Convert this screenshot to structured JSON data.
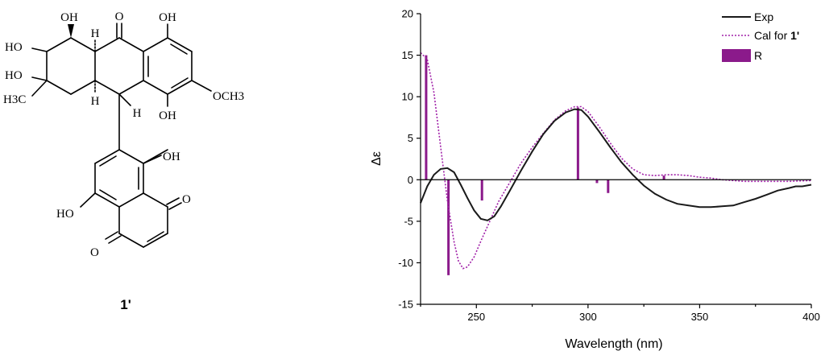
{
  "molecule": {
    "compound_label": "1'",
    "groups": {
      "oh_top_left": "OH",
      "carbonyl_o": "O",
      "oh_top_right": "OH",
      "ho_1": "HO",
      "ho_2": "HO",
      "h_ring_top": "H",
      "h_ring_bottom": "H",
      "h_benzylic": "H",
      "methyl": "H3C",
      "methoxy": "OCH3",
      "oh_mid": "OH",
      "oh_naph": "OH",
      "ho_naph": "HO",
      "o_quinone_right": "O",
      "o_quinone_left": "O"
    }
  },
  "chart_data": {
    "type": "line",
    "xlabel": "Wavelength (nm)",
    "ylabel": "Δε",
    "xlim": [
      225,
      400
    ],
    "ylim": [
      -15,
      20
    ],
    "x_ticks": [
      250,
      300,
      350,
      400
    ],
    "y_ticks": [
      -15,
      -10,
      -5,
      0,
      5,
      10,
      15,
      20
    ],
    "grid": false,
    "legend_position": "top-right",
    "series": [
      {
        "name": "Exp",
        "style": "solid",
        "color": "#1a1a1a",
        "points": [
          [
            225,
            -2.8
          ],
          [
            228,
            -0.8
          ],
          [
            231,
            0.6
          ],
          [
            234,
            1.3
          ],
          [
            237,
            1.4
          ],
          [
            240,
            0.9
          ],
          [
            243,
            -0.6
          ],
          [
            246,
            -2.2
          ],
          [
            249,
            -3.7
          ],
          [
            252,
            -4.7
          ],
          [
            255,
            -4.9
          ],
          [
            258,
            -4.4
          ],
          [
            261,
            -3.2
          ],
          [
            265,
            -1.3
          ],
          [
            270,
            1.1
          ],
          [
            275,
            3.4
          ],
          [
            280,
            5.5
          ],
          [
            285,
            7.1
          ],
          [
            290,
            8.1
          ],
          [
            294,
            8.5
          ],
          [
            297,
            8.4
          ],
          [
            300,
            7.6
          ],
          [
            305,
            5.8
          ],
          [
            310,
            3.9
          ],
          [
            315,
            2.1
          ],
          [
            320,
            0.6
          ],
          [
            325,
            -0.7
          ],
          [
            330,
            -1.7
          ],
          [
            335,
            -2.4
          ],
          [
            340,
            -2.9
          ],
          [
            345,
            -3.1
          ],
          [
            350,
            -3.3
          ],
          [
            355,
            -3.3
          ],
          [
            360,
            -3.2
          ],
          [
            365,
            -3.1
          ],
          [
            370,
            -2.7
          ],
          [
            375,
            -2.3
          ],
          [
            380,
            -1.8
          ],
          [
            385,
            -1.3
          ],
          [
            390,
            -1.0
          ],
          [
            393,
            -0.8
          ],
          [
            396,
            -0.8
          ],
          [
            400,
            -0.6
          ]
        ]
      },
      {
        "name": "Cal for 1'",
        "name_prefix": "Cal for ",
        "name_bold": "1'",
        "style": "dotted",
        "color": "#a020a8",
        "points": [
          [
            225,
            15.3
          ],
          [
            228,
            14.5
          ],
          [
            231,
            10.5
          ],
          [
            234,
            4.0
          ],
          [
            237,
            -2.5
          ],
          [
            240,
            -7.5
          ],
          [
            242,
            -9.8
          ],
          [
            244,
            -10.7
          ],
          [
            246,
            -10.5
          ],
          [
            249,
            -9.3
          ],
          [
            252,
            -7.4
          ],
          [
            256,
            -5.0
          ],
          [
            260,
            -2.6
          ],
          [
            265,
            -0.3
          ],
          [
            270,
            2.0
          ],
          [
            275,
            3.9
          ],
          [
            280,
            5.6
          ],
          [
            285,
            7.2
          ],
          [
            290,
            8.3
          ],
          [
            294,
            8.8
          ],
          [
            297,
            8.8
          ],
          [
            300,
            8.2
          ],
          [
            305,
            6.4
          ],
          [
            310,
            4.4
          ],
          [
            315,
            2.6
          ],
          [
            320,
            1.3
          ],
          [
            325,
            0.6
          ],
          [
            330,
            0.5
          ],
          [
            335,
            0.6
          ],
          [
            340,
            0.6
          ],
          [
            345,
            0.5
          ],
          [
            350,
            0.3
          ],
          [
            355,
            0.2
          ],
          [
            360,
            0.0
          ],
          [
            365,
            -0.1
          ],
          [
            370,
            -0.2
          ],
          [
            380,
            -0.2
          ],
          [
            390,
            -0.2
          ],
          [
            400,
            -0.1
          ]
        ]
      },
      {
        "name": "R",
        "style": "sticks",
        "color": "#8b1a8b",
        "sticks": [
          [
            227.5,
            15.0
          ],
          [
            237.5,
            -11.5
          ],
          [
            252.5,
            -2.5
          ],
          [
            295.5,
            8.7
          ],
          [
            304,
            -0.4
          ],
          [
            309,
            -1.6
          ],
          [
            334,
            0.5
          ]
        ]
      }
    ]
  }
}
